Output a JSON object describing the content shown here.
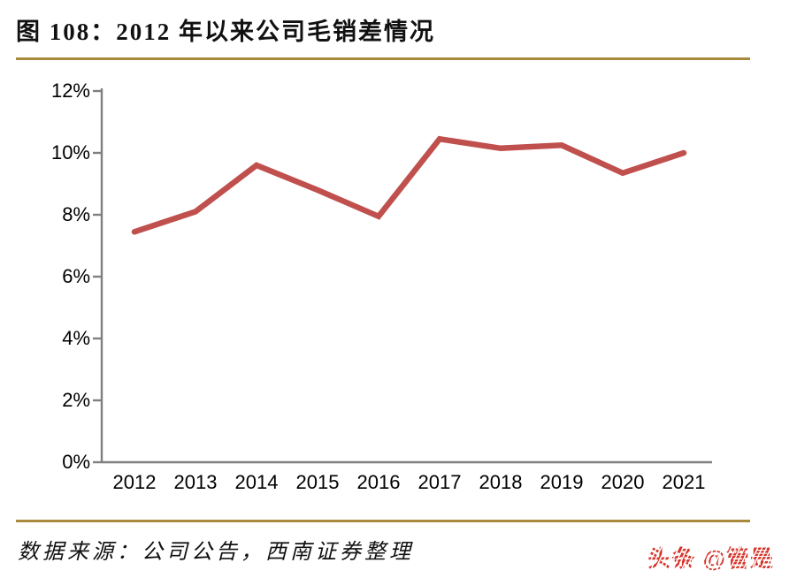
{
  "header": {
    "title": "图 108：2012 年以来公司毛销差情况"
  },
  "footer": {
    "source": "数据来源：公司公告，西南证券整理",
    "watermark": "头条 @管是"
  },
  "colors": {
    "divider_gold": "#A98A3C",
    "line_red": "#C0504D",
    "axis_gray": "#7F7F7F",
    "watermark_red": "#D7342A",
    "text_black": "#111111"
  },
  "chart_data": {
    "type": "line",
    "title": "图 108：2012 年以来公司毛销差情况",
    "categories": [
      "2012",
      "2013",
      "2014",
      "2015",
      "2016",
      "2017",
      "2018",
      "2019",
      "2020",
      "2021"
    ],
    "values": [
      7.45,
      8.1,
      9.6,
      8.8,
      7.95,
      10.45,
      10.15,
      10.25,
      9.35,
      10.0
    ],
    "unit": "%",
    "xlabel": "",
    "ylabel": "",
    "ylim": [
      0,
      12
    ],
    "ytick_values": [
      0,
      2,
      4,
      6,
      8,
      10,
      12
    ],
    "ytick_labels": [
      "0%",
      "2%",
      "4%",
      "6%",
      "8%",
      "10%",
      "12%"
    ],
    "grid": false,
    "legend": false,
    "line_color": "#C0504D",
    "axis_color": "#7F7F7F"
  }
}
